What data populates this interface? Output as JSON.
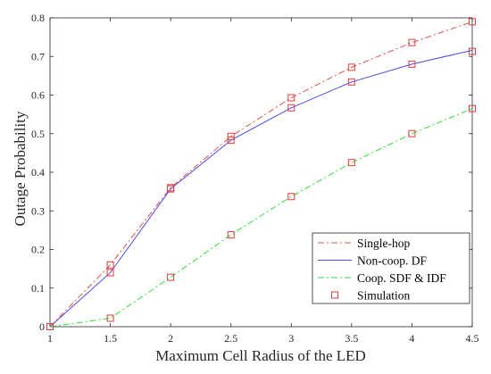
{
  "chart_data": {
    "type": "line",
    "title": "",
    "xlabel": "Maximum Cell Radius of the  LED",
    "ylabel": "Outage Probability",
    "xlim": [
      1,
      4.5
    ],
    "ylim": [
      0,
      0.8
    ],
    "xticks": [
      1,
      1.5,
      2,
      2.5,
      3,
      3.5,
      4,
      4.5
    ],
    "yticks": [
      0,
      0.1,
      0.2,
      0.3,
      0.4,
      0.5,
      0.6,
      0.7,
      0.8
    ],
    "xtick_labels": [
      "1",
      "1.5",
      "2",
      "2.5",
      "3",
      "3.5",
      "4",
      "4.5"
    ],
    "ytick_labels": [
      "0",
      "0.1",
      "0.2",
      "0.3",
      "0.4",
      "0.5",
      "0.6",
      "0.7",
      "0.8"
    ],
    "grid": false,
    "legend_position": "bottom-right",
    "x": [
      1,
      1.5,
      2,
      2.5,
      3,
      3.5,
      4,
      4.5
    ],
    "series": [
      {
        "name": "Single-hop",
        "color": "#d9534f",
        "style": "dashdot",
        "values": [
          0.0,
          0.16,
          0.36,
          0.493,
          0.593,
          0.672,
          0.736,
          0.79
        ]
      },
      {
        "name": "Non-coop. DF",
        "color": "#4a4ae8",
        "style": "solid",
        "values": [
          0.0,
          0.14,
          0.357,
          0.483,
          0.567,
          0.634,
          0.68,
          0.716
        ]
      },
      {
        "name": "Coop. SDF & IDF",
        "color": "#33dd33",
        "style": "dashdot",
        "values": [
          0.0,
          0.022,
          0.128,
          0.238,
          0.337,
          0.425,
          0.5,
          0.565
        ]
      }
    ],
    "simulation": {
      "name": "Simulation",
      "color": "#e23b3b",
      "marker": "square",
      "points": [
        [
          1,
          0.0
        ],
        [
          1.5,
          0.16
        ],
        [
          2,
          0.36
        ],
        [
          2.5,
          0.493
        ],
        [
          3,
          0.593
        ],
        [
          3.5,
          0.672
        ],
        [
          4,
          0.736
        ],
        [
          4.5,
          0.79
        ],
        [
          1.5,
          0.14
        ],
        [
          2,
          0.357
        ],
        [
          2.5,
          0.483
        ],
        [
          3,
          0.567
        ],
        [
          3.5,
          0.634
        ],
        [
          4,
          0.68
        ],
        [
          4.5,
          0.713
        ],
        [
          1.5,
          0.022
        ],
        [
          2,
          0.128
        ],
        [
          2.5,
          0.238
        ],
        [
          3,
          0.337
        ],
        [
          3.5,
          0.425
        ],
        [
          4,
          0.5
        ],
        [
          4.5,
          0.565
        ]
      ]
    }
  }
}
